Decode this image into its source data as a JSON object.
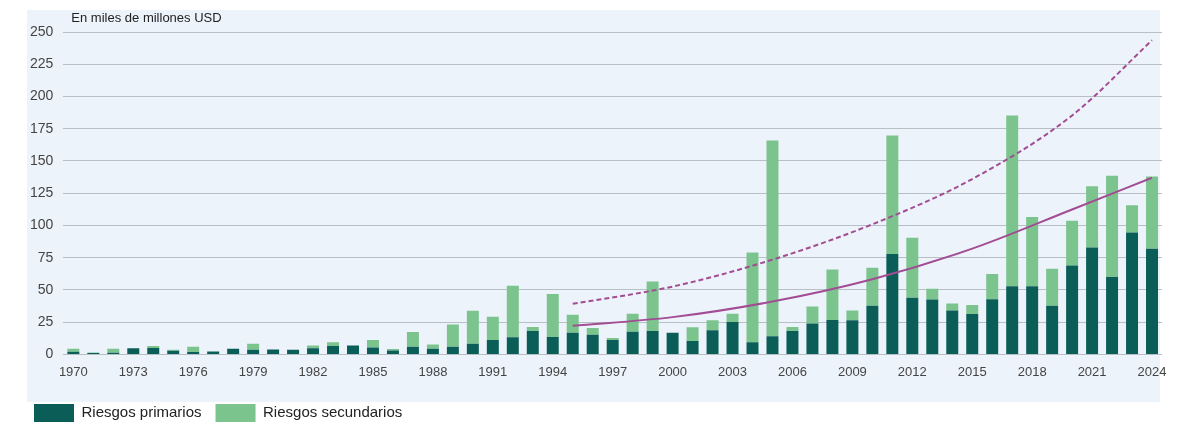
{
  "chart_data": {
    "type": "bar",
    "stacked": true,
    "ylabel": "En miles de millones USD",
    "categories": [
      "1970",
      null,
      null,
      "1973",
      null,
      null,
      "1976",
      null,
      null,
      "1979",
      null,
      null,
      "1982",
      null,
      null,
      "1985",
      null,
      null,
      "1988",
      null,
      null,
      "1991",
      null,
      null,
      "1994",
      null,
      null,
      "1997",
      null,
      null,
      "2000",
      null,
      null,
      "2003",
      null,
      null,
      "2006",
      null,
      null,
      "2009",
      null,
      null,
      "2012",
      null,
      null,
      "2015",
      null,
      null,
      "2018",
      null,
      null,
      "2021",
      null,
      null,
      "2024"
    ],
    "series": [
      {
        "name": "Riesgos primarios",
        "color": "#0b5e57",
        "values": [
          2,
          1,
          1.3,
          4.8,
          5,
          2.8,
          1.8,
          2.3,
          4.3,
          3.6,
          3.8,
          3.6,
          4.8,
          6.6,
          6.9,
          5.4,
          3.1,
          5.9,
          4.3,
          5.9,
          8.2,
          11.2,
          13.3,
          18.1,
          13.5,
          16.7,
          15.2,
          11.2,
          17.6,
          18.2,
          16.7,
          10.3,
          18.8,
          25.2,
          9.4,
          14,
          18.2,
          24,
          26.7,
          26.4,
          37.7,
          77.8,
          44,
          42.5,
          34,
          31.3,
          42.8,
          52.9,
          52.9,
          37.7,
          69,
          82.9,
          60.1,
          94.5,
          82
        ]
      },
      {
        "name": "Riesgos secundarios",
        "color": "#7cc48d",
        "values": [
          2.3,
          0.5,
          3,
          0,
          1.6,
          0.8,
          4.1,
          0,
          0,
          4.6,
          0,
          0,
          2.1,
          2.8,
          0,
          5.8,
          1,
          11.4,
          3.4,
          17.3,
          25.7,
          17.9,
          40,
          3.1,
          33.3,
          14,
          5.2,
          1.6,
          14,
          38.3,
          0,
          10.7,
          7.6,
          6.4,
          69.6,
          151.9,
          3.1,
          13.1,
          39.2,
          7.6,
          29.4,
          92,
          46.5,
          8.5,
          5.5,
          7,
          19.5,
          132.4,
          53.7,
          28.8,
          34.6,
          47.4,
          78.4,
          21.2,
          55.9
        ]
      },
      {
        "type": "line",
        "color": "#a24d93",
        "line_style": "solid",
        "values": [
          null,
          null,
          null,
          null,
          null,
          null,
          null,
          null,
          null,
          null,
          null,
          null,
          null,
          null,
          null,
          null,
          null,
          null,
          null,
          null,
          null,
          null,
          null,
          null,
          null,
          22.2,
          null,
          null,
          null,
          null,
          28.9,
          null,
          null,
          null,
          null,
          41,
          null,
          null,
          null,
          null,
          58.3,
          null,
          null,
          null,
          null,
          82,
          null,
          null,
          null,
          null,
          112.4,
          null,
          null,
          null,
          137
        ]
      },
      {
        "type": "line",
        "color": "#a24d93",
        "line_style": "dashed",
        "values": [
          null,
          null,
          null,
          null,
          null,
          null,
          null,
          null,
          null,
          null,
          null,
          null,
          null,
          null,
          null,
          null,
          null,
          null,
          null,
          null,
          null,
          null,
          null,
          null,
          null,
          39.2,
          null,
          null,
          null,
          null,
          52.6,
          null,
          null,
          null,
          null,
          73.5,
          null,
          null,
          null,
          null,
          100.9,
          null,
          null,
          null,
          null,
          136,
          null,
          null,
          null,
          null,
          185.3,
          null,
          null,
          null,
          243.6
        ]
      }
    ],
    "ylim": [
      0,
      250
    ],
    "yticks": [
      0,
      25,
      50,
      75,
      100,
      125,
      150,
      175,
      200,
      225,
      250
    ],
    "grid": "y",
    "legend": "bottom left",
    "marker": "none"
  }
}
